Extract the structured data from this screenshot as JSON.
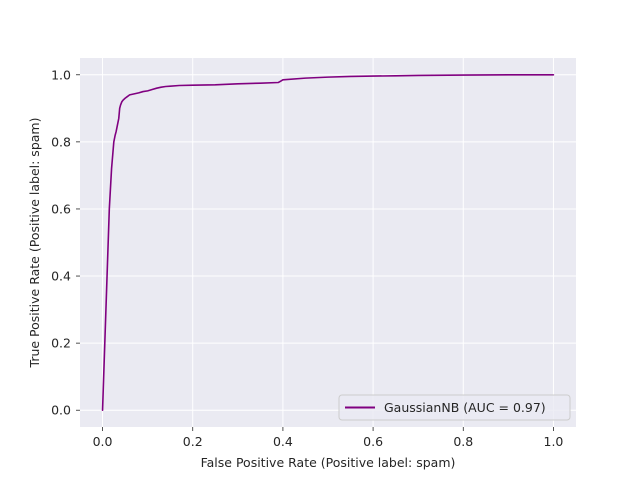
{
  "chart_data": {
    "type": "line",
    "title": "",
    "xlabel": "False Positive Rate (Positive label: spam)",
    "ylabel": "True Positive Rate (Positive label: spam)",
    "xlim": [
      -0.05,
      1.05
    ],
    "ylim": [
      -0.05,
      1.05
    ],
    "xticks": [
      0.0,
      0.2,
      0.4,
      0.6,
      0.8,
      1.0
    ],
    "yticks": [
      0.0,
      0.2,
      0.4,
      0.6,
      0.8,
      1.0
    ],
    "xtick_labels": [
      "0.0",
      "0.2",
      "0.4",
      "0.6",
      "0.8",
      "1.0"
    ],
    "ytick_labels": [
      "0.0",
      "0.2",
      "0.4",
      "0.6",
      "0.8",
      "1.0"
    ],
    "grid": true,
    "legend_position": "lower-right",
    "colors": {
      "background": "#eaeaf2",
      "grid": "#ffffff",
      "line": "#800080"
    },
    "series": [
      {
        "name": "GaussianNB (AUC = 0.97)",
        "x": [
          0.0,
          0.005,
          0.01,
          0.015,
          0.02,
          0.025,
          0.028,
          0.03,
          0.033,
          0.036,
          0.038,
          0.04,
          0.043,
          0.046,
          0.05,
          0.055,
          0.06,
          0.07,
          0.08,
          0.09,
          0.1,
          0.11,
          0.12,
          0.13,
          0.14,
          0.15,
          0.17,
          0.2,
          0.25,
          0.3,
          0.35,
          0.39,
          0.395,
          0.4,
          0.45,
          0.5,
          0.55,
          0.6,
          0.65,
          0.7,
          0.8,
          0.9,
          1.0
        ],
        "y": [
          0.0,
          0.2,
          0.4,
          0.6,
          0.72,
          0.8,
          0.82,
          0.83,
          0.85,
          0.87,
          0.9,
          0.91,
          0.92,
          0.925,
          0.93,
          0.935,
          0.94,
          0.943,
          0.946,
          0.95,
          0.952,
          0.956,
          0.96,
          0.963,
          0.965,
          0.966,
          0.968,
          0.969,
          0.97,
          0.973,
          0.975,
          0.977,
          0.981,
          0.985,
          0.99,
          0.993,
          0.995,
          0.996,
          0.997,
          0.998,
          0.999,
          1.0,
          1.0
        ]
      }
    ]
  }
}
